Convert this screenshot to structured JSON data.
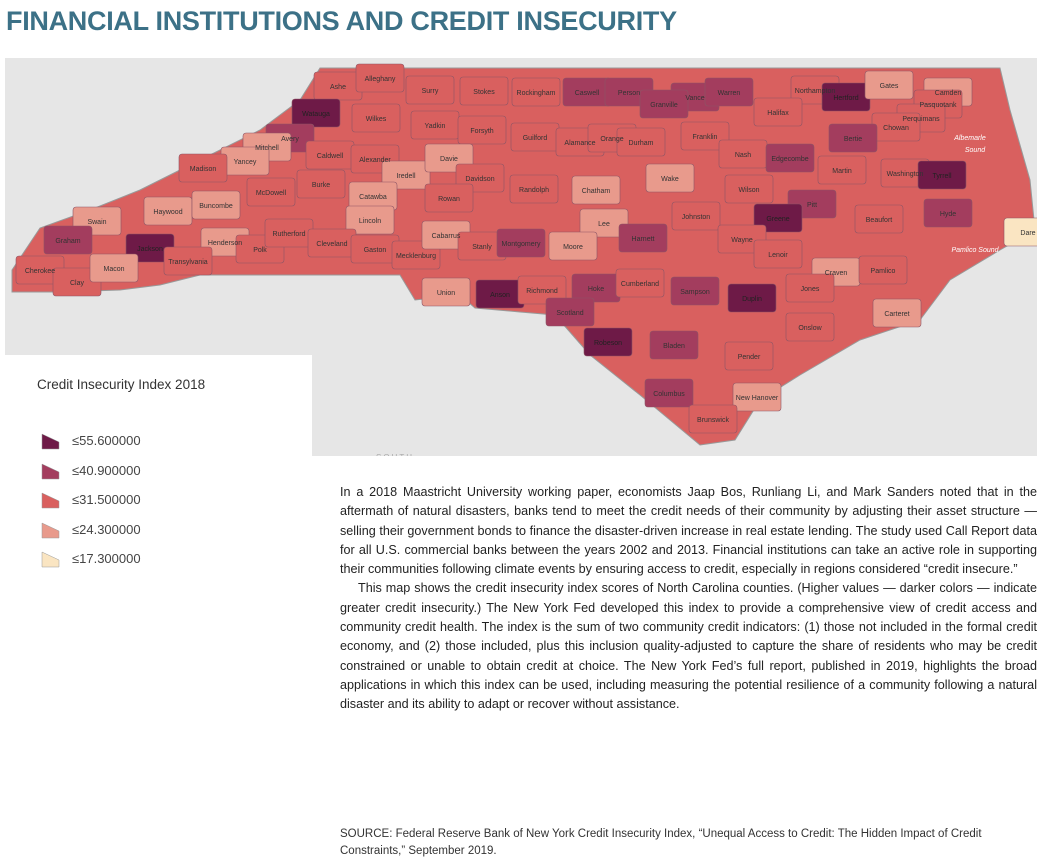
{
  "title": "FINANCIAL INSTITUTIONS AND CREDIT INSECURITY",
  "map": {
    "counties": [
      {
        "name": "Ashe",
        "class": 2
      },
      {
        "name": "Alleghany",
        "class": 2
      },
      {
        "name": "Surry",
        "class": 2
      },
      {
        "name": "Stokes",
        "class": 2
      },
      {
        "name": "Rockingham",
        "class": 2
      },
      {
        "name": "Caswell",
        "class": 1
      },
      {
        "name": "Person",
        "class": 1
      },
      {
        "name": "Vance",
        "class": 1
      },
      {
        "name": "Warren",
        "class": 1
      },
      {
        "name": "Granville",
        "class": 1
      },
      {
        "name": "Northampton",
        "class": 2
      },
      {
        "name": "Hertford",
        "class": 0
      },
      {
        "name": "Gates",
        "class": 3
      },
      {
        "name": "Camden",
        "class": 3
      },
      {
        "name": "Pasquotank",
        "class": 2
      },
      {
        "name": "Perquimans",
        "class": 2
      },
      {
        "name": "Chowan",
        "class": 2
      },
      {
        "name": "Watauga",
        "class": 0
      },
      {
        "name": "Wilkes",
        "class": 2
      },
      {
        "name": "Yadkin",
        "class": 2
      },
      {
        "name": "Forsyth",
        "class": 2
      },
      {
        "name": "Guilford",
        "class": 2
      },
      {
        "name": "Alamance",
        "class": 2
      },
      {
        "name": "Orange",
        "class": 2
      },
      {
        "name": "Durham",
        "class": 2
      },
      {
        "name": "Halifax",
        "class": 2
      },
      {
        "name": "Franklin",
        "class": 2
      },
      {
        "name": "Bertie",
        "class": 1
      },
      {
        "name": "Avery",
        "class": 1
      },
      {
        "name": "Mitchell",
        "class": 3
      },
      {
        "name": "Caldwell",
        "class": 2
      },
      {
        "name": "Alexander",
        "class": 2
      },
      {
        "name": "Iredell",
        "class": 3
      },
      {
        "name": "Davie",
        "class": 3
      },
      {
        "name": "Davidson",
        "class": 2
      },
      {
        "name": "Yancey",
        "class": 3
      },
      {
        "name": "Madison",
        "class": 2
      },
      {
        "name": "Nash",
        "class": 2
      },
      {
        "name": "Edgecombe",
        "class": 1
      },
      {
        "name": "Martin",
        "class": 2
      },
      {
        "name": "Washington",
        "class": 2
      },
      {
        "name": "Tyrrell",
        "class": 0
      },
      {
        "name": "Wake",
        "class": 3
      },
      {
        "name": "Burke",
        "class": 2
      },
      {
        "name": "McDowell",
        "class": 2
      },
      {
        "name": "Catawba",
        "class": 3
      },
      {
        "name": "Rowan",
        "class": 2
      },
      {
        "name": "Randolph",
        "class": 2
      },
      {
        "name": "Chatham",
        "class": 3
      },
      {
        "name": "Wilson",
        "class": 2
      },
      {
        "name": "Pitt",
        "class": 1
      },
      {
        "name": "Haywood",
        "class": 3
      },
      {
        "name": "Buncombe",
        "class": 3
      },
      {
        "name": "Swain",
        "class": 3
      },
      {
        "name": "Lincoln",
        "class": 3
      },
      {
        "name": "Johnston",
        "class": 2
      },
      {
        "name": "Greene",
        "class": 0
      },
      {
        "name": "Beaufort",
        "class": 2
      },
      {
        "name": "Hyde",
        "class": 1
      },
      {
        "name": "Lee",
        "class": 3
      },
      {
        "name": "Graham",
        "class": 1
      },
      {
        "name": "Jackson",
        "class": 0
      },
      {
        "name": "Henderson",
        "class": 3
      },
      {
        "name": "Transylvania",
        "class": 2
      },
      {
        "name": "Polk",
        "class": 2
      },
      {
        "name": "Rutherford",
        "class": 2
      },
      {
        "name": "Cleveland",
        "class": 2
      },
      {
        "name": "Gaston",
        "class": 2
      },
      {
        "name": "Mecklenburg",
        "class": 2
      },
      {
        "name": "Cabarrus",
        "class": 3
      },
      {
        "name": "Stanly",
        "class": 2
      },
      {
        "name": "Montgomery",
        "class": 1
      },
      {
        "name": "Moore",
        "class": 3
      },
      {
        "name": "Harnett",
        "class": 1
      },
      {
        "name": "Wayne",
        "class": 2
      },
      {
        "name": "Lenoir",
        "class": 2
      },
      {
        "name": "Craven",
        "class": 3
      },
      {
        "name": "Pamlico",
        "class": 2
      },
      {
        "name": "Cherokee",
        "class": 2
      },
      {
        "name": "Clay",
        "class": 2
      },
      {
        "name": "Macon",
        "class": 3
      },
      {
        "name": "Union",
        "class": 3
      },
      {
        "name": "Anson",
        "class": 0
      },
      {
        "name": "Richmond",
        "class": 2
      },
      {
        "name": "Hoke",
        "class": 1
      },
      {
        "name": "Cumberland",
        "class": 2
      },
      {
        "name": "Sampson",
        "class": 1
      },
      {
        "name": "Duplin",
        "class": 0
      },
      {
        "name": "Jones",
        "class": 2
      },
      {
        "name": "Carteret",
        "class": 3
      },
      {
        "name": "Scotland",
        "class": 1
      },
      {
        "name": "Onslow",
        "class": 2
      },
      {
        "name": "Robeson",
        "class": 0
      },
      {
        "name": "Bladen",
        "class": 1
      },
      {
        "name": "Pender",
        "class": 2
      },
      {
        "name": "Columbus",
        "class": 1
      },
      {
        "name": "New Hanover",
        "class": 3
      },
      {
        "name": "Brunswick",
        "class": 2
      },
      {
        "name": "Dare",
        "class": 4
      }
    ],
    "water_labels": [
      "Albemarle",
      "Sound",
      "Pamlico Sound"
    ],
    "other_labels": [
      "SOUTH"
    ]
  },
  "legend": {
    "title": "Credit Insecurity Index 2018",
    "items": [
      {
        "value": 55.6,
        "label": "≤55.600000",
        "color": "#6e1a47"
      },
      {
        "value": 40.9,
        "label": "≤40.900000",
        "color": "#a33d5e"
      },
      {
        "value": 31.5,
        "label": "≤31.500000",
        "color": "#d9605f"
      },
      {
        "value": 24.3,
        "label": "≤24.300000",
        "color": "#e89a8c"
      },
      {
        "value": 17.3,
        "label": "≤17.300000",
        "color": "#fae5c2"
      }
    ]
  },
  "body": {
    "paragraphs": [
      "In a 2018 Maastricht University working paper, economists Jaap Bos, Runliang Li, and Mark Sanders noted that in the aftermath of natural disasters, banks tend to meet the credit needs of their community by adjusting their asset structure — selling their government bonds to finance the disaster-driven increase in real estate lending. The study used Call Report data for all U.S. commercial banks between the years 2002 and 2013. Financial institutions can take an active role in supporting their communities following climate events by ensuring access to credit, especially in regions considered “credit insecure.”",
      "This map shows the credit insecurity index scores of North Carolina counties. (Higher values — darker colors — indicate greater credit insecurity.) The New York Fed developed this index to provide a comprehensive view of credit access and community credit health. The index is the sum of two community credit indicators: (1) those not included in the formal credit economy, and (2) those included, plus this inclusion quality-adjusted to capture the share of residents who may be credit constrained or unable to obtain credit at choice. The New York Fed’s full report, published in 2019, highlights the broad applications in which this index can be used, including measuring the potential resilience of a community following a natural disaster and its ability to adapt or recover without assistance."
    ],
    "source": "SOURCE: Federal Reserve Bank of New York Credit Insecurity Index, “Unequal Access to Credit: The Hidden Impact of Credit Constraints,” September 2019."
  }
}
